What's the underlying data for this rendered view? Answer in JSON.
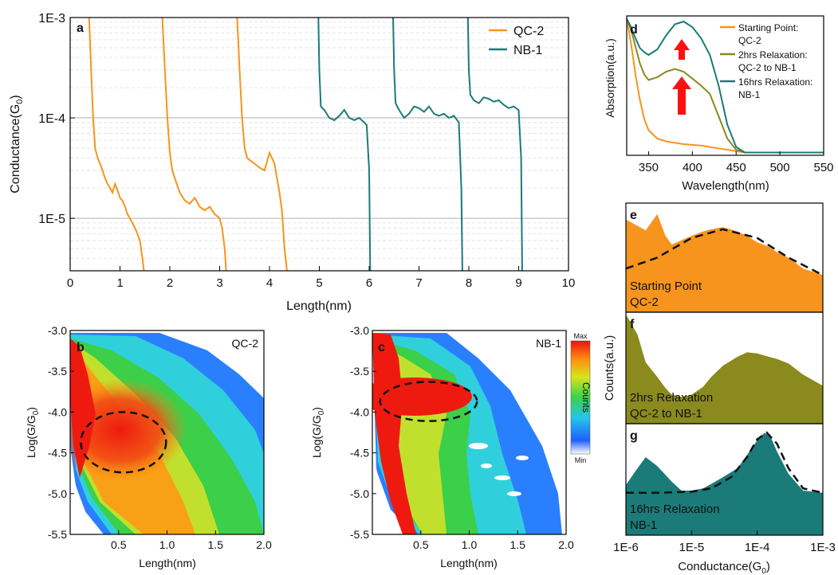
{
  "colors": {
    "qc2": "#f7941d",
    "nb1": "#1b7b78",
    "olive": "#8a8a1e",
    "arrow": "#ff1010",
    "grid": "#c8c8c8",
    "axis": "#000000"
  },
  "chart_data": [
    {
      "panel": "a",
      "type": "line",
      "xlabel": "Length(nm)",
      "ylabel": "Conductance(G0)",
      "ylabel_sub": "0",
      "xlim": [
        0,
        10
      ],
      "ylim": [
        3e-06,
        0.001
      ],
      "yscale": "log",
      "xticks": [
        0,
        1,
        2,
        3,
        4,
        5,
        6,
        7,
        8,
        9,
        10
      ],
      "yticks": [
        {
          "v": 0.001,
          "label": "1E-3"
        },
        {
          "v": 0.0001,
          "label": "1E-4"
        },
        {
          "v": 1e-05,
          "label": "1E-5"
        }
      ],
      "grid": true,
      "legend_position": "top-right",
      "series": [
        {
          "name": "QC-2",
          "color": "qc2",
          "traces": [
            {
              "x": [
                0.38,
                0.42,
                0.46,
                0.5,
                0.55,
                0.6,
                0.65,
                0.7,
                0.75,
                0.8,
                0.85,
                0.9,
                0.95,
                1.0,
                1.05,
                1.1,
                1.15,
                1.2,
                1.25,
                1.3,
                1.35,
                1.4,
                1.45,
                1.48
              ],
              "y": [
                0.001,
                0.0003,
                0.0001,
                5e-05,
                4e-05,
                3.5e-05,
                3e-05,
                2.5e-05,
                2.2e-05,
                2e-05,
                1.8e-05,
                2.2e-05,
                1.9e-05,
                1.6e-05,
                1.5e-05,
                1.3e-05,
                1.1e-05,
                1e-05,
                9e-06,
                8e-06,
                7e-06,
                6e-06,
                4e-06,
                3e-06
              ]
            },
            {
              "x": [
                1.85,
                1.9,
                1.95,
                2.0,
                2.05,
                2.1,
                2.2,
                2.3,
                2.4,
                2.5,
                2.6,
                2.7,
                2.8,
                2.9,
                3.0,
                3.05,
                3.1,
                3.13
              ],
              "y": [
                0.001,
                0.0003,
                0.0001,
                4.5e-05,
                3e-05,
                2.5e-05,
                1.8e-05,
                1.5e-05,
                1.4e-05,
                1.6e-05,
                1.3e-05,
                1.2e-05,
                1.3e-05,
                1.1e-05,
                1e-05,
                8e-06,
                5e-06,
                3e-06
              ]
            },
            {
              "x": [
                3.35,
                3.4,
                3.45,
                3.5,
                3.55,
                3.6,
                3.7,
                3.8,
                3.9,
                4.0,
                4.1,
                4.15,
                4.2,
                4.25,
                4.3,
                4.35
              ],
              "y": [
                0.001,
                0.0003,
                0.0001,
                5e-05,
                4e-05,
                3.8e-05,
                3.5e-05,
                3.2e-05,
                3e-05,
                4.5e-05,
                3.5e-05,
                2.5e-05,
                1.8e-05,
                1.2e-05,
                5e-06,
                3e-06
              ]
            }
          ]
        },
        {
          "name": "NB-1",
          "color": "nb1",
          "traces": [
            {
              "x": [
                4.98,
                5.0,
                5.03,
                5.1,
                5.2,
                5.3,
                5.4,
                5.5,
                5.6,
                5.7,
                5.8,
                5.9,
                5.95,
                6.0,
                6.02
              ],
              "y": [
                0.001,
                0.0003,
                0.00013,
                0.00012,
                0.0001,
                9.5e-05,
                0.000105,
                0.00012,
                0.0001,
                9.5e-05,
                0.0001,
                9e-05,
                8.5e-05,
                3e-05,
                3e-06
              ]
            },
            {
              "x": [
                6.48,
                6.5,
                6.53,
                6.6,
                6.7,
                6.8,
                6.9,
                7.0,
                7.1,
                7.2,
                7.3,
                7.4,
                7.5,
                7.6,
                7.7,
                7.8,
                7.85,
                7.87
              ],
              "y": [
                0.001,
                0.0003,
                0.00014,
                0.00012,
                0.0001,
                0.00011,
                0.00013,
                0.000125,
                0.000115,
                0.00013,
                0.00011,
                0.000105,
                0.00011,
                0.0001,
                0.000105,
                9e-05,
                2e-05,
                3e-06
              ]
            },
            {
              "x": [
                7.98,
                8.0,
                8.03,
                8.1,
                8.2,
                8.3,
                8.4,
                8.5,
                8.6,
                8.7,
                8.8,
                8.9,
                9.0,
                9.05,
                9.07
              ],
              "y": [
                0.001,
                0.0003,
                0.00017,
                0.00015,
                0.00014,
                0.00016,
                0.000155,
                0.000145,
                0.00015,
                0.000135,
                0.000125,
                0.00013,
                0.00012,
                4e-05,
                3e-06
              ]
            }
          ]
        }
      ]
    },
    {
      "panel": "b",
      "type": "heatmap",
      "label": "QC-2",
      "xlabel": "Length(nm)",
      "ylabel": "Log(G/G0)",
      "ylabel_sub": "0",
      "xlim": [
        0,
        2.0
      ],
      "ylim": [
        -5.5,
        -3.0
      ],
      "xticks": [
        {
          "v": 0.5,
          "label": "0.5"
        },
        {
          "v": 1.0,
          "label": "1.0"
        },
        {
          "v": 1.5,
          "label": "1.5"
        },
        {
          "v": 2.0,
          "label": "2.0"
        }
      ],
      "yticks": [
        {
          "v": -3.0,
          "label": "-3.0"
        },
        {
          "v": -3.5,
          "label": "-3.5"
        },
        {
          "v": -4.0,
          "label": "-4.0"
        },
        {
          "v": -4.5,
          "label": "-4.5"
        },
        {
          "v": -5.0,
          "label": "-5.0"
        },
        {
          "v": -5.5,
          "label": "-5.5"
        }
      ],
      "highlight_ellipse": {
        "center": [
          0.55,
          -4.37
        ],
        "radii": [
          0.44,
          0.37
        ]
      }
    },
    {
      "panel": "c",
      "type": "heatmap",
      "label": "NB-1",
      "xlabel": "Length(nm)",
      "ylabel": "Log(G/G0)",
      "ylabel_sub": "0",
      "xlim": [
        0,
        2.0
      ],
      "ylim": [
        -5.5,
        -3.0
      ],
      "xticks": [
        {
          "v": 0.5,
          "label": "0.5"
        },
        {
          "v": 1.0,
          "label": "1.0"
        },
        {
          "v": 1.5,
          "label": "1.5"
        },
        {
          "v": 2.0,
          "label": "2.0"
        }
      ],
      "yticks": [
        {
          "v": -3.0,
          "label": "-3.0"
        },
        {
          "v": -3.5,
          "label": "-3.5"
        },
        {
          "v": -4.0,
          "label": "-4.0"
        },
        {
          "v": -4.5,
          "label": "-4.5"
        },
        {
          "v": -5.0,
          "label": "-5.0"
        },
        {
          "v": -5.5,
          "label": "-5.5"
        }
      ],
      "highlight_ellipse": {
        "center": [
          0.58,
          -3.87
        ],
        "radii": [
          0.5,
          0.24
        ]
      },
      "colorbar": {
        "title": "Counts",
        "max_label": "Max",
        "min_label": "Min"
      }
    },
    {
      "panel": "d",
      "type": "line",
      "xlabel": "Wavelength(nm)",
      "ylabel": "Absorption(a.u.)",
      "xlim": [
        325,
        550
      ],
      "ylim": [
        0,
        1
      ],
      "xticks": [
        350,
        400,
        450,
        500,
        550
      ],
      "grid": false,
      "legend_position": "top-right",
      "series": [
        {
          "name": "Starting Point: QC-2",
          "legend_lines": [
            "Starting Point:",
            "QC-2"
          ],
          "color": "qc2",
          "x": [
            325,
            330,
            335,
            340,
            345,
            350,
            360,
            370,
            380,
            390,
            400,
            410,
            420,
            430,
            440,
            450,
            460,
            480,
            500,
            550
          ],
          "y": [
            0.98,
            0.8,
            0.58,
            0.4,
            0.26,
            0.18,
            0.12,
            0.1,
            0.09,
            0.08,
            0.075,
            0.07,
            0.06,
            0.05,
            0.04,
            0.03,
            0.02,
            0.02,
            0.02,
            0.02
          ]
        },
        {
          "name": "2hrs Relaxation: QC-2 to NB-1",
          "legend_lines": [
            "2hrs Relaxation:",
            "QC-2 to NB-1"
          ],
          "color": "olive",
          "x": [
            325,
            330,
            335,
            340,
            345,
            350,
            360,
            370,
            380,
            390,
            400,
            410,
            420,
            430,
            440,
            450,
            460,
            480,
            500,
            550
          ],
          "y": [
            0.98,
            0.9,
            0.78,
            0.66,
            0.58,
            0.54,
            0.56,
            0.6,
            0.62,
            0.6,
            0.55,
            0.5,
            0.44,
            0.28,
            0.12,
            0.04,
            0.02,
            0.02,
            0.02,
            0.02
          ]
        },
        {
          "name": "16hrs Relaxation: NB-1",
          "legend_lines": [
            "16hrs Relaxation:",
            "NB-1"
          ],
          "color": "nb1",
          "x": [
            325,
            330,
            335,
            340,
            345,
            350,
            360,
            370,
            380,
            390,
            400,
            410,
            420,
            430,
            440,
            450,
            460,
            480,
            500,
            550
          ],
          "y": [
            0.98,
            0.92,
            0.84,
            0.77,
            0.74,
            0.72,
            0.76,
            0.86,
            0.94,
            0.96,
            0.92,
            0.84,
            0.72,
            0.5,
            0.22,
            0.06,
            0.02,
            0.02,
            0.02,
            0.02
          ]
        }
      ]
    },
    {
      "panel": "e-g",
      "type": "area",
      "xlabel": "Conductance(G0)",
      "xlabel_sub": "0",
      "ylabel": "Counts(a.u.)",
      "xscale": "log",
      "xlim": [
        1e-06,
        0.001
      ],
      "xticks": [
        {
          "v": 1e-06,
          "label": "1E-6"
        },
        {
          "v": 1e-05,
          "label": "1E-5"
        },
        {
          "v": 0.0001,
          "label": "1E-4"
        },
        {
          "v": 0.001,
          "label": "1E-3"
        }
      ],
      "ylim": [
        0,
        1
      ],
      "panels": [
        {
          "letter": "e",
          "label_lines": [
            "Starting Point",
            "QC-2"
          ],
          "color": "qc2",
          "x": [
            1e-06,
            2e-06,
            3e-06,
            4e-06,
            5e-06,
            7e-06,
            1e-05,
            1.5e-05,
            2e-05,
            3e-05,
            5e-05,
            7e-05,
            0.0001,
            0.00015,
            0.0002,
            0.0003,
            0.0005,
            0.001
          ],
          "y": [
            0.85,
            0.75,
            0.9,
            0.7,
            0.62,
            0.66,
            0.7,
            0.74,
            0.76,
            0.78,
            0.74,
            0.7,
            0.64,
            0.6,
            0.55,
            0.5,
            0.4,
            0.34
          ],
          "fit": {
            "x": [
              1e-06,
              3e-06,
              1e-05,
              3e-05,
              0.0001,
              0.0003,
              0.001
            ],
            "y": [
              0.4,
              0.5,
              0.68,
              0.76,
              0.68,
              0.5,
              0.34
            ]
          }
        },
        {
          "letter": "f",
          "label_lines": [
            "2hrs Relaxation",
            "QC-2 to NB-1"
          ],
          "color": "olive",
          "x": [
            1e-06,
            1.5e-06,
            2e-06,
            3e-06,
            4e-06,
            5e-06,
            7e-06,
            1e-05,
            1.5e-05,
            2e-05,
            3e-05,
            5e-05,
            7e-05,
            0.0001,
            0.00015,
            0.0002,
            0.0003,
            0.0005,
            0.001
          ],
          "y": [
            0.98,
            0.8,
            0.55,
            0.42,
            0.32,
            0.26,
            0.24,
            0.26,
            0.33,
            0.42,
            0.52,
            0.6,
            0.64,
            0.63,
            0.6,
            0.58,
            0.54,
            0.44,
            0.34
          ]
        },
        {
          "letter": "g",
          "label_lines": [
            "16hrs Relaxation",
            "NB-1"
          ],
          "color": "nb1",
          "x": [
            1e-06,
            1.5e-06,
            2e-06,
            3e-06,
            5e-06,
            7e-06,
            1e-05,
            1.5e-05,
            2e-05,
            3e-05,
            5e-05,
            7e-05,
            0.0001,
            0.00013,
            0.00016,
            0.0002,
            0.0003,
            0.0005,
            0.001
          ],
          "y": [
            0.45,
            0.6,
            0.7,
            0.62,
            0.48,
            0.4,
            0.4,
            0.42,
            0.46,
            0.52,
            0.6,
            0.72,
            0.85,
            0.92,
            0.88,
            0.75,
            0.55,
            0.4,
            0.38
          ],
          "fit": {
            "x": [
              1e-06,
              3e-06,
              1e-05,
              2e-05,
              4e-05,
              7e-05,
              0.0001,
              0.00014,
              0.0002,
              0.0003,
              0.0005,
              0.001
            ],
            "y": [
              0.38,
              0.38,
              0.39,
              0.42,
              0.52,
              0.7,
              0.86,
              0.92,
              0.82,
              0.6,
              0.42,
              0.38
            ]
          }
        }
      ]
    }
  ]
}
